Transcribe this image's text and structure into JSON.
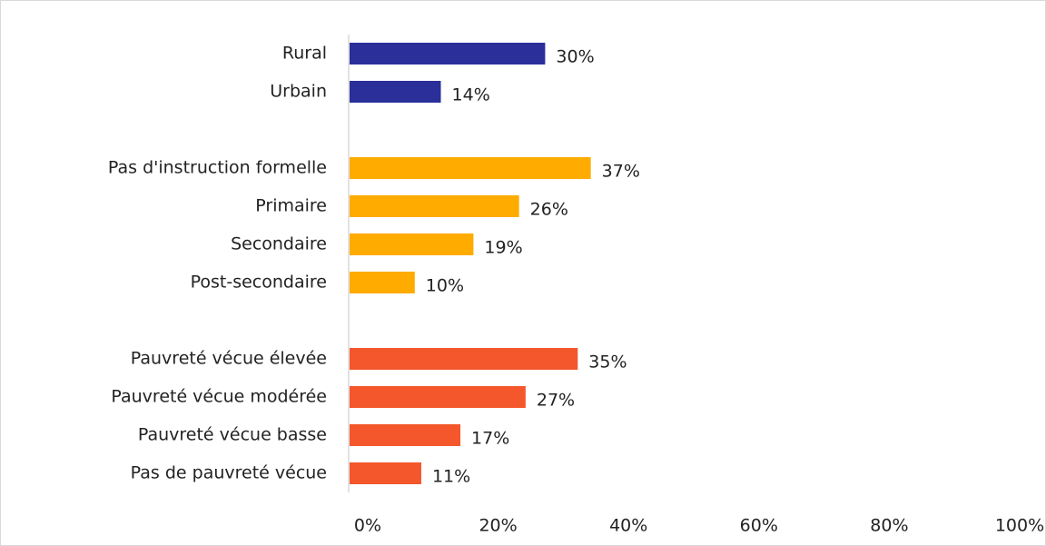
{
  "chart_data": {
    "type": "bar",
    "orientation": "horizontal",
    "categories": [
      "Rural",
      "Urbain",
      null,
      "Pas d'instruction formelle",
      "Primaire",
      "Secondaire",
      "Post-secondaire",
      null,
      "Pauvreté vécue élevée",
      "Pauvreté vécue modérée",
      "Pauvreté vécue basse",
      "Pas de pauvreté vécue"
    ],
    "values": [
      30,
      14,
      null,
      37,
      26,
      19,
      10,
      null,
      35,
      27,
      17,
      11
    ],
    "value_labels": [
      "30%",
      "14%",
      null,
      "37%",
      "26%",
      "19%",
      "10%",
      null,
      "35%",
      "27%",
      "17%",
      "11%"
    ],
    "colors": [
      "#2b2f9a",
      "#2b2f9a",
      null,
      "#ffab00",
      "#ffab00",
      "#ffab00",
      "#ffab00",
      null,
      "#f4572c",
      "#f4572c",
      "#f4572c",
      "#f4572c"
    ],
    "xlim": [
      0,
      100
    ],
    "xticks": [
      {
        "value": 0,
        "label": "0%"
      },
      {
        "value": 20,
        "label": "20%"
      },
      {
        "value": 40,
        "label": "40%"
      },
      {
        "value": 60,
        "label": "60%"
      },
      {
        "value": 80,
        "label": "80%"
      },
      {
        "value": 100,
        "label": "100%"
      }
    ],
    "grid": false
  }
}
